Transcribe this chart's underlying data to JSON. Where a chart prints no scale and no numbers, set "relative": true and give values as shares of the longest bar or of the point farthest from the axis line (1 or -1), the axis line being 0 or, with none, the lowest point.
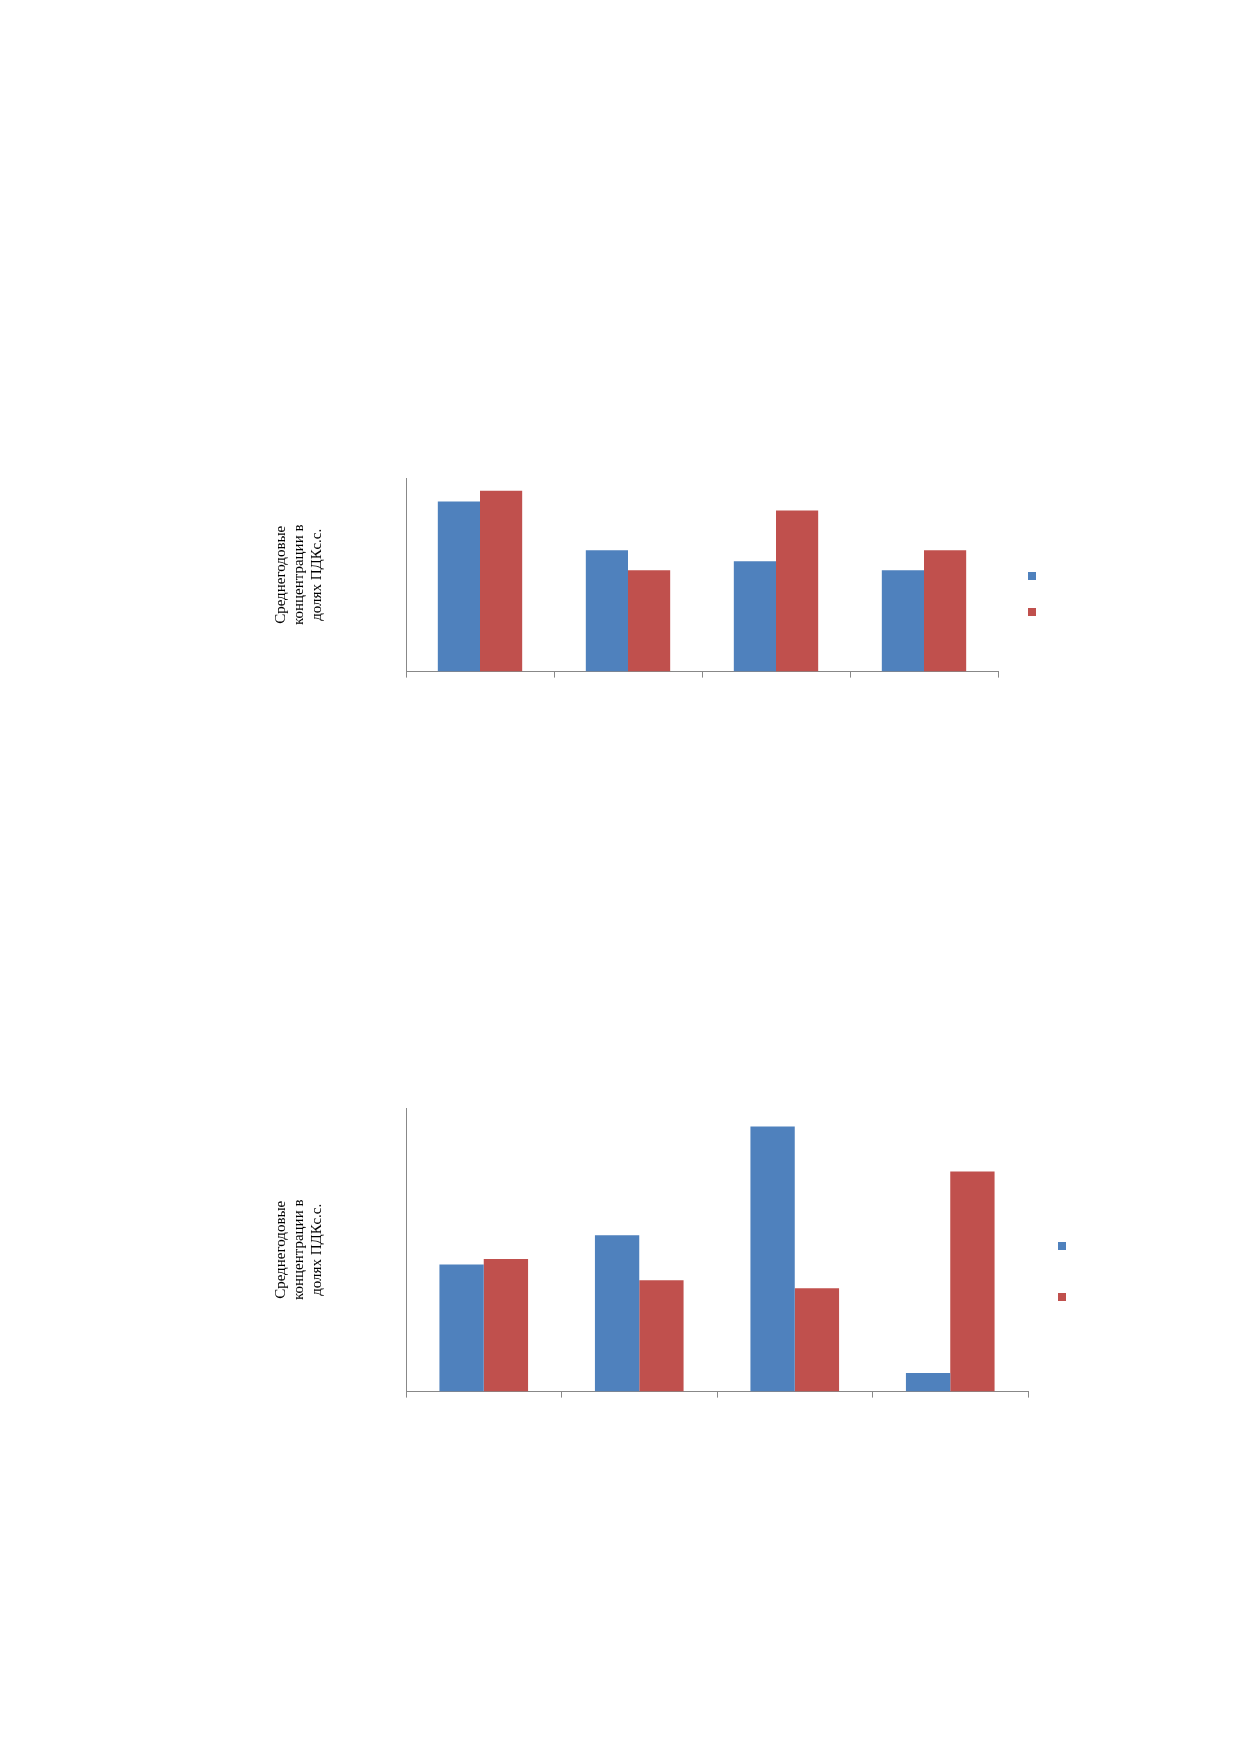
{
  "chart_data": [
    {
      "type": "bar",
      "ylabel": "Среднегодовые концентрации в долях ПДКс.с.",
      "categories": [
        null,
        null,
        null,
        null
      ],
      "relative": true,
      "grid": false,
      "series": [
        {
          "color": "#4f81bd",
          "values": [
            0.94,
            0.67,
            0.61,
            0.56
          ]
        },
        {
          "color": "#c0504d",
          "values": [
            1,
            0.56,
            0.89,
            0.67
          ]
        }
      ]
    },
    {
      "type": "bar",
      "ylabel": "Среднегодовые концентрации в долях ПДКс.с.",
      "categories": [
        null,
        null,
        null,
        null
      ],
      "relative": true,
      "grid": false,
      "series": [
        {
          "color": "#4f81bd",
          "values": [
            0.48,
            0.59,
            1,
            0.07
          ]
        },
        {
          "color": "#c0504d",
          "values": [
            0.5,
            0.42,
            0.39,
            0.83
          ]
        }
      ]
    }
  ]
}
